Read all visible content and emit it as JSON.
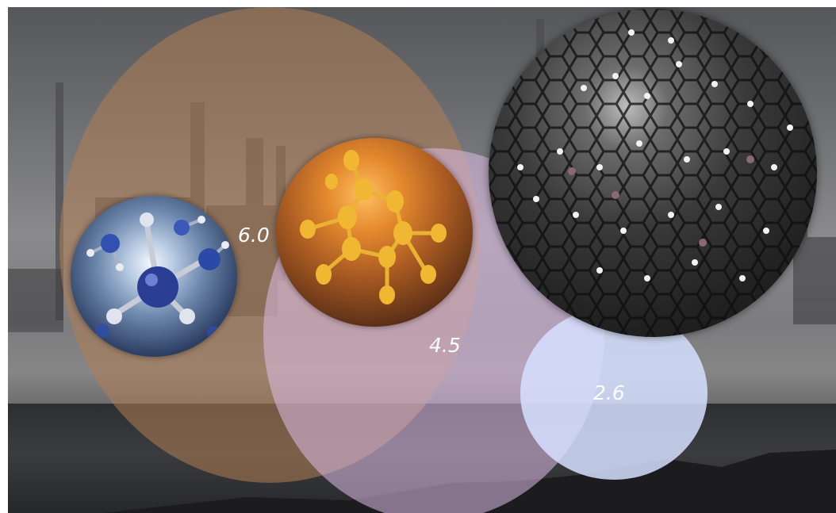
{
  "labels": {
    "a": "6.0",
    "b": "4.5",
    "c": "2.6"
  },
  "colors": {
    "orange_bubble": "#b07e54",
    "pink_bubble": "#debee8",
    "blue_bubble": "#d6e0ff",
    "label_text": "#ffffff"
  },
  "icons": {
    "blue_sphere": "molecule-blue-sphere",
    "amber_sphere": "molecule-amber-sphere",
    "dark_sphere": "molecule-dark-sphere"
  }
}
